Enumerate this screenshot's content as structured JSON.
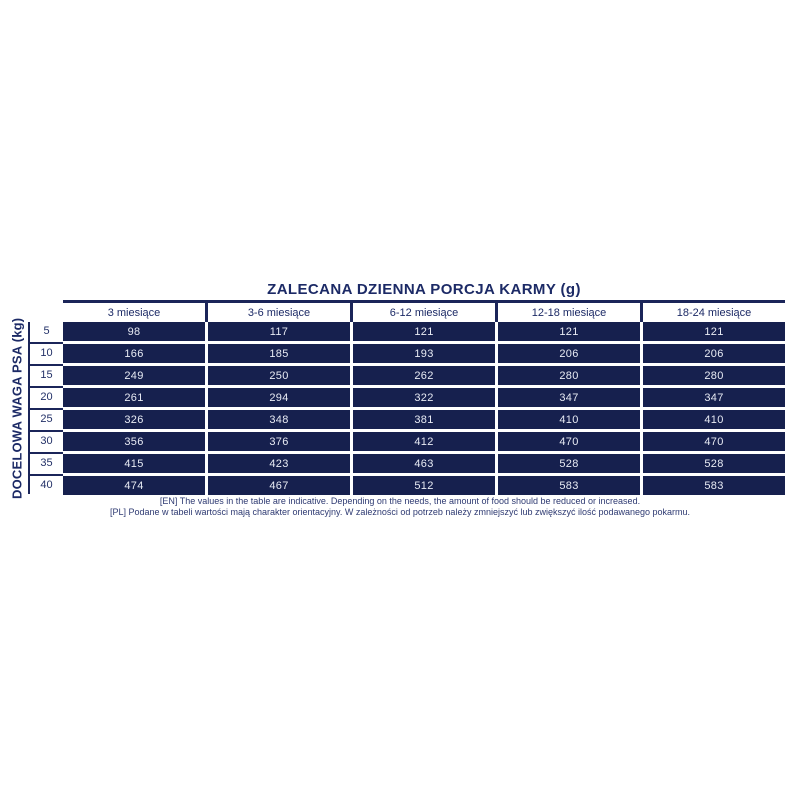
{
  "table": {
    "title": "ZALECANA DZIENNA PORCJA KARMY (g)",
    "row_axis_label": "DOCELOWA WAGA PSA (kg)",
    "columns": [
      "3 miesiące",
      "3-6 miesiące",
      "6-12 miesiące",
      "12-18 miesiące",
      "18-24 miesiące"
    ],
    "rows": [
      {
        "weight": "5",
        "values": [
          "98",
          "117",
          "121",
          "121",
          "121"
        ]
      },
      {
        "weight": "10",
        "values": [
          "166",
          "185",
          "193",
          "206",
          "206"
        ]
      },
      {
        "weight": "15",
        "values": [
          "249",
          "250",
          "262",
          "280",
          "280"
        ]
      },
      {
        "weight": "20",
        "values": [
          "261",
          "294",
          "322",
          "347",
          "347"
        ]
      },
      {
        "weight": "25",
        "values": [
          "326",
          "348",
          "381",
          "410",
          "410"
        ]
      },
      {
        "weight": "30",
        "values": [
          "356",
          "376",
          "412",
          "470",
          "470"
        ]
      },
      {
        "weight": "35",
        "values": [
          "415",
          "423",
          "463",
          "528",
          "528"
        ]
      },
      {
        "weight": "40",
        "values": [
          "474",
          "467",
          "512",
          "583",
          "583"
        ]
      }
    ]
  },
  "footnotes": {
    "en": "[EN] The values in the table are indicative. Depending on the needs, the amount of food should be reduced or increased.",
    "pl": "[PL] Podane w tabeli wartości mają charakter orientacyjny. W zależności od potrzeb należy zmniejszyć lub zwiększyć ilość podawanego pokarmu."
  },
  "colors": {
    "cell_navy": "#16204e",
    "line_navy": "#1b2559",
    "title_navy": "#1c2a66",
    "cell_text": "#e8ebf4",
    "background": "#ffffff"
  }
}
